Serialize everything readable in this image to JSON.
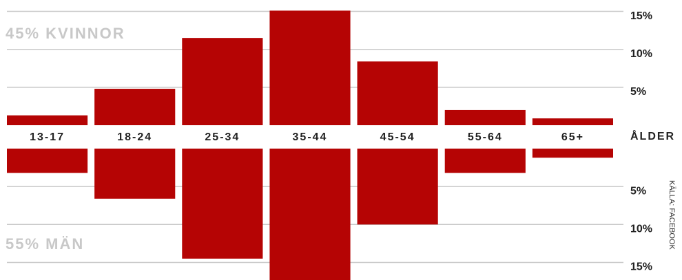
{
  "chart_data": {
    "type": "bar",
    "categories": [
      "13-17",
      "18-24",
      "25-34",
      "35-44",
      "45-54",
      "55-64",
      "65+"
    ],
    "x_label": "ÅLDER",
    "source": "KÄLLA: FACEBOOK",
    "series": [
      {
        "name": "45% KVINNOR",
        "color": "#b50404",
        "values": [
          1.3,
          4.8,
          11.5,
          15.1,
          8.4,
          2.0,
          0.9
        ]
      },
      {
        "name": "55% MÄN",
        "color": "#b50404",
        "values": [
          3.2,
          6.6,
          14.5,
          17.5,
          10.0,
          3.2,
          1.2
        ]
      }
    ],
    "ylim": [
      0,
      16.5
    ],
    "yticks": [
      {
        "value": 5,
        "label": "5%"
      },
      {
        "value": 10,
        "label": "10%"
      },
      {
        "value": 15,
        "label": "15%"
      }
    ],
    "grid": true
  }
}
